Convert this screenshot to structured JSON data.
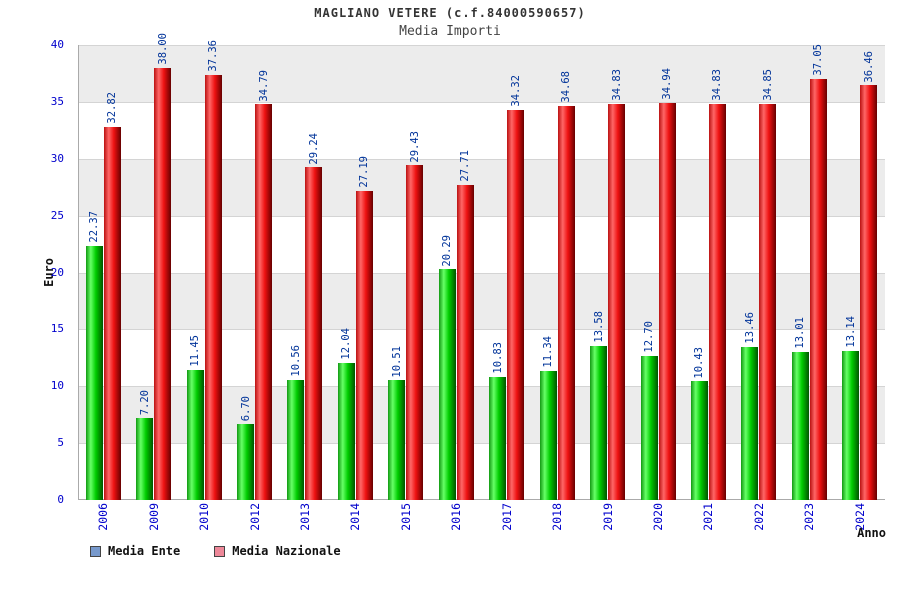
{
  "chart_data": {
    "type": "bar",
    "title": "MAGLIANO VETERE (c.f.84000590657)",
    "subtitle": "Media Importi",
    "xlabel": "Anno",
    "ylabel": "Euro",
    "ylim": [
      0,
      40
    ],
    "yticks": [
      0,
      5,
      10,
      15,
      20,
      25,
      30,
      35,
      40
    ],
    "grid": true,
    "legend_position": "bottom-left",
    "value_label_format": "0.00",
    "categories": [
      "2006",
      "2009",
      "2010",
      "2012",
      "2013",
      "2014",
      "2015",
      "2016",
      "2017",
      "2018",
      "2019",
      "2020",
      "2021",
      "2022",
      "2023",
      "2024"
    ],
    "series": [
      {
        "name": "Media Ente",
        "legend_color": "#7799cc",
        "gradient": [
          "#119911",
          "#66ff66",
          "#00cc00",
          "#005500"
        ],
        "values": [
          22.37,
          7.2,
          11.45,
          6.7,
          10.56,
          12.04,
          10.51,
          20.29,
          10.83,
          11.34,
          13.58,
          12.7,
          10.43,
          13.46,
          13.01,
          13.14
        ]
      },
      {
        "name": "Media Nazionale",
        "legend_color": "#ee8899",
        "gradient": [
          "#bb1111",
          "#ff6666",
          "#ee1111",
          "#660000"
        ],
        "values": [
          32.82,
          38.0,
          37.36,
          34.79,
          29.24,
          27.19,
          29.43,
          27.71,
          34.32,
          34.68,
          34.83,
          34.94,
          34.83,
          34.85,
          37.05,
          36.46
        ]
      }
    ],
    "colors": {
      "axis_tick_labels": "#0000cc",
      "value_labels": "#003399",
      "band_alt": "#ececec",
      "title": "#333333"
    }
  }
}
